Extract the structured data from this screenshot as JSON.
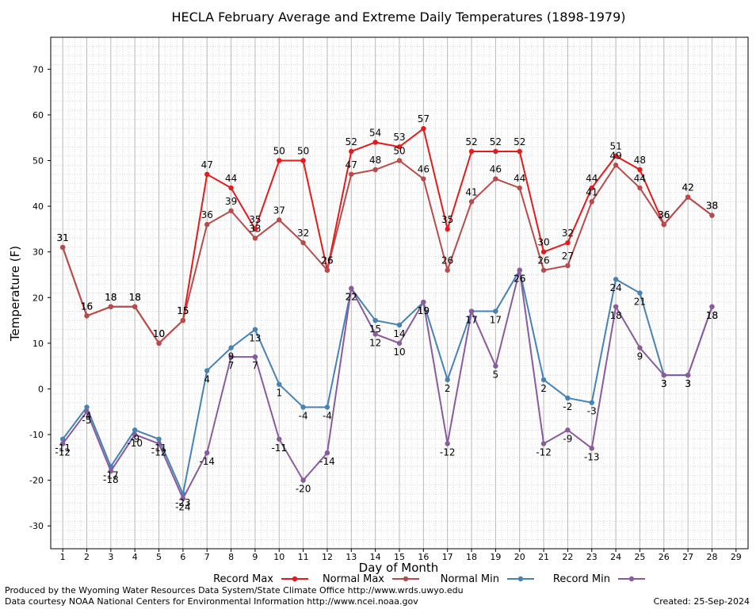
{
  "chart_data": {
    "type": "line",
    "title": "HECLA February Average and Extreme Daily Temperatures (1898-1979)",
    "xlabel": "Day of Month",
    "ylabel": "Temperature (F)",
    "x": [
      1,
      2,
      3,
      4,
      5,
      6,
      7,
      8,
      9,
      10,
      11,
      12,
      13,
      14,
      15,
      16,
      17,
      18,
      19,
      20,
      21,
      22,
      23,
      24,
      25,
      26,
      27,
      28
    ],
    "xlim": [
      0.5,
      29.5
    ],
    "ylim": [
      -35,
      77
    ],
    "x_ticks": [
      1,
      2,
      3,
      4,
      5,
      6,
      7,
      8,
      9,
      10,
      11,
      12,
      13,
      14,
      15,
      16,
      17,
      18,
      19,
      20,
      21,
      22,
      23,
      24,
      25,
      26,
      27,
      28,
      29
    ],
    "y_ticks": [
      -30,
      -20,
      -10,
      0,
      10,
      20,
      30,
      40,
      50,
      60,
      70
    ],
    "grid": true,
    "legend_position": "bottom",
    "series": [
      {
        "name": "Record Max",
        "color": "#e41a1c",
        "values": [
          31,
          16,
          18,
          18,
          10,
          15,
          47,
          44,
          35,
          50,
          50,
          26,
          52,
          54,
          53,
          57,
          35,
          52,
          52,
          52,
          30,
          32,
          44,
          51,
          48,
          36,
          42,
          38
        ]
      },
      {
        "name": "Normal Max",
        "color": "#b84a4a",
        "values": [
          31,
          16,
          18,
          18,
          10,
          15,
          36,
          39,
          33,
          37,
          32,
          26,
          47,
          48,
          50,
          46,
          26,
          41,
          46,
          44,
          26,
          27,
          41,
          49,
          44,
          36,
          42,
          38
        ]
      },
      {
        "name": "Normal Min",
        "color": "#4682b4",
        "values": [
          -11,
          -4,
          -17,
          -9,
          -11,
          -23,
          4,
          9,
          13,
          1,
          -4,
          -4,
          22,
          15,
          14,
          19,
          2,
          17,
          17,
          26,
          2,
          -2,
          -3,
          24,
          21,
          3,
          3,
          18
        ]
      },
      {
        "name": "Record Min",
        "color": "#8a5a9e",
        "values": [
          -12,
          -5,
          -18,
          -10,
          -12,
          -24,
          -14,
          7,
          7,
          -11,
          -20,
          -14,
          22,
          12,
          10,
          19,
          -12,
          17,
          5,
          26,
          -12,
          -9,
          -13,
          18,
          9,
          3,
          3,
          18
        ]
      }
    ]
  },
  "footer": {
    "line1": "Produced by the Wyoming Water Resources Data System/State Climate Office http://www.wrds.uwyo.edu",
    "line2": "Data courtesy NOAA National Centers for Environmental Information http://www.ncei.noaa.gov",
    "created": "Created:  25-Sep-2024"
  }
}
